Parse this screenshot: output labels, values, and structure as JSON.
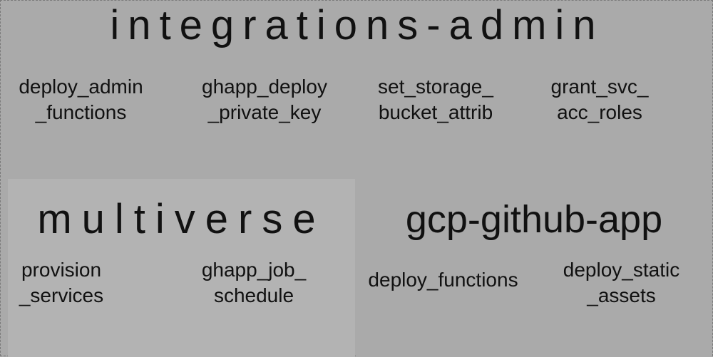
{
  "integrations_admin": {
    "title": "integrations-admin",
    "items": [
      {
        "lines": [
          "deploy_admin",
          "_functions"
        ]
      },
      {
        "lines": [
          "ghapp_deploy",
          "_private_key"
        ]
      },
      {
        "lines": [
          "set_storage_",
          "bucket_attrib"
        ]
      },
      {
        "lines": [
          "grant_svc_",
          "acc_roles"
        ]
      }
    ]
  },
  "multiverse": {
    "title": "multiverse",
    "items": [
      {
        "lines": [
          "provision",
          "_services"
        ]
      },
      {
        "lines": [
          "ghapp_job_",
          "schedule"
        ]
      }
    ]
  },
  "gcp_github_app": {
    "title": "gcp-github-app",
    "items": [
      {
        "lines": [
          "deploy_functions"
        ]
      },
      {
        "lines": [
          "deploy_static",
          "_assets"
        ]
      }
    ]
  },
  "colors": {
    "outer_background": "#aaaaaa",
    "multiverse_background": "#b3b3b3",
    "gcp_background": "#aaaaaa",
    "border": "#7a7a7a",
    "text": "#111111"
  }
}
